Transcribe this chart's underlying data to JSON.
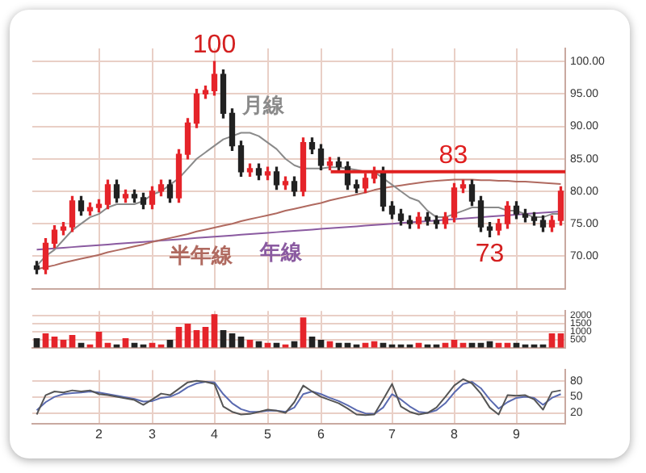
{
  "chart_data": [
    {
      "type": "candlestick",
      "categories": [
        null,
        null,
        null,
        null,
        null,
        null,
        null,
        "2",
        null,
        null,
        null,
        null,
        null,
        "3",
        null,
        null,
        null,
        null,
        null,
        null,
        "4",
        null,
        null,
        null,
        null,
        null,
        "5",
        null,
        null,
        null,
        null,
        null,
        "6",
        null,
        null,
        null,
        null,
        null,
        null,
        null,
        "7",
        null,
        null,
        null,
        null,
        null,
        null,
        "8",
        null,
        null,
        null,
        null,
        null,
        null,
        "9",
        null,
        null,
        null,
        null,
        null
      ],
      "ohlc": [
        [
          68.5,
          69.2,
          67.3,
          68
        ],
        [
          68,
          72.7,
          67.3,
          72
        ],
        [
          72,
          74.7,
          71.3,
          74
        ],
        [
          74,
          75.2,
          73.3,
          74.5
        ],
        [
          74.5,
          79.2,
          73.8,
          78.5
        ],
        [
          78.5,
          79.2,
          76.3,
          77
        ],
        [
          77,
          78.2,
          76.3,
          77.5
        ],
        [
          77.5,
          78.7,
          76.8,
          78
        ],
        [
          78,
          81.7,
          77.3,
          81
        ],
        [
          81,
          81.7,
          78.3,
          79
        ],
        [
          79,
          80.2,
          78.3,
          79.5
        ],
        [
          79.5,
          80.2,
          78.3,
          79
        ],
        [
          79,
          79.7,
          77.3,
          78
        ],
        [
          78,
          80.7,
          77.3,
          80
        ],
        [
          80,
          81.7,
          79.3,
          81
        ],
        [
          81,
          81.7,
          78.3,
          79
        ],
        [
          79,
          86.4,
          78.3,
          85.7
        ],
        [
          85.7,
          91.2,
          85,
          90.5
        ],
        [
          90.5,
          95.7,
          89.8,
          95
        ],
        [
          95,
          96.2,
          94.3,
          95.5
        ],
        [
          95.5,
          100,
          94.8,
          98
        ],
        [
          98,
          98.7,
          91.3,
          92
        ],
        [
          92,
          92.7,
          86.3,
          87
        ],
        [
          87,
          87.7,
          82.3,
          83
        ],
        [
          83,
          84.2,
          82.3,
          83.5
        ],
        [
          83.5,
          84.2,
          81.8,
          82.5
        ],
        [
          82.5,
          83.7,
          81.8,
          83
        ],
        [
          83,
          83.7,
          80.3,
          81
        ],
        [
          81,
          82.2,
          80.3,
          81.5
        ],
        [
          81.5,
          82.2,
          79.3,
          80
        ],
        [
          80,
          88.2,
          79.3,
          87.5
        ],
        [
          87.5,
          88.2,
          85.8,
          86.5
        ],
        [
          86.5,
          87.2,
          83.3,
          84
        ],
        [
          84,
          85.2,
          83.3,
          84.5
        ],
        [
          84.5,
          85.2,
          83.1,
          83.8
        ],
        [
          83.8,
          84.5,
          80.3,
          81
        ],
        [
          81,
          81.7,
          79.8,
          80.5
        ],
        [
          80.5,
          82.7,
          79.8,
          82
        ],
        [
          82,
          83.7,
          81.3,
          83
        ],
        [
          83,
          83.7,
          77,
          77.7
        ],
        [
          77.7,
          78.4,
          75.8,
          76.5
        ],
        [
          76.5,
          77.2,
          74.8,
          75.5
        ],
        [
          75.5,
          76.2,
          74.3,
          75
        ],
        [
          75,
          76.7,
          74.3,
          76
        ],
        [
          76,
          76.7,
          74.8,
          75.5
        ],
        [
          75.5,
          76.2,
          74.3,
          75
        ],
        [
          75,
          76.7,
          74.3,
          76
        ],
        [
          76,
          81.2,
          75.3,
          80.5
        ],
        [
          80.5,
          81.7,
          79.8,
          81
        ],
        [
          81,
          81.7,
          77.8,
          78.5
        ],
        [
          78.5,
          79.2,
          73.8,
          74.5
        ],
        [
          74.5,
          75.2,
          73,
          74
        ],
        [
          74,
          75.7,
          73.3,
          75
        ],
        [
          75,
          78.4,
          74.3,
          77.7
        ],
        [
          77.7,
          78.4,
          75.8,
          76.5
        ],
        [
          76.5,
          77.2,
          75.3,
          76
        ],
        [
          76,
          76.7,
          74.8,
          75.5
        ],
        [
          75.5,
          76.2,
          73.8,
          74.5
        ],
        [
          74.5,
          76.2,
          73.8,
          75.5
        ],
        [
          75.5,
          80.7,
          74.8,
          80
        ]
      ],
      "colors": [
        "#222222",
        "#e5242a",
        "#e5242a",
        "#e5242a",
        "#e5242a",
        "#222222",
        "#e5242a",
        "#e5242a",
        "#e5242a",
        "#222222",
        "#e5242a",
        "#222222",
        "#222222",
        "#e5242a",
        "#e5242a",
        "#222222",
        "#e5242a",
        "#e5242a",
        "#e5242a",
        "#e5242a",
        "#e5242a",
        "#222222",
        "#222222",
        "#222222",
        "#e5242a",
        "#222222",
        "#e5242a",
        "#222222",
        "#e5242a",
        "#222222",
        "#e5242a",
        "#222222",
        "#222222",
        "#e5242a",
        "#222222",
        "#222222",
        "#222222",
        "#e5242a",
        "#e5242a",
        "#222222",
        "#222222",
        "#222222",
        "#222222",
        "#e5242a",
        "#222222",
        "#222222",
        "#e5242a",
        "#e5242a",
        "#e5242a",
        "#222222",
        "#222222",
        "#222222",
        "#e5242a",
        "#e5242a",
        "#222222",
        "#222222",
        "#222222",
        "#222222",
        "#e5242a",
        "#e5242a"
      ],
      "series": [
        {
          "type": "line",
          "name": "月線",
          "color": "#8a8a8a",
          "values": [
            68.5,
            70,
            71,
            72.5,
            74,
            75,
            76,
            76.5,
            77.5,
            78,
            78,
            78,
            78.5,
            79.5,
            80,
            81,
            82,
            83.5,
            85,
            86,
            87,
            88,
            88.5,
            89,
            89,
            88.5,
            87.5,
            86.5,
            85,
            84,
            83.5,
            83.5,
            83.5,
            83.7,
            83.7,
            83.5,
            83.3,
            83,
            83,
            82,
            81,
            80,
            79,
            78.5,
            77,
            76,
            76,
            76.5,
            77,
            77.5,
            77.5,
            77.5,
            77.5,
            77,
            77,
            76.5,
            76,
            76,
            76.5,
            76.5
          ]
        },
        {
          "type": "line",
          "name": "半年線",
          "color": "#b06a60",
          "values": [
            68,
            68.3,
            68.6,
            69,
            69.3,
            69.6,
            69.9,
            70.2,
            70.6,
            70.9,
            71.2,
            71.5,
            71.8,
            72.2,
            72.5,
            72.8,
            73.1,
            73.4,
            73.8,
            74.1,
            74.4,
            74.7,
            75,
            75.4,
            75.7,
            76,
            76.3,
            76.6,
            77,
            77.3,
            77.6,
            77.9,
            78.2,
            78.6,
            78.9,
            79.2,
            79.5,
            79.8,
            80.2,
            80.5,
            80.7,
            80.9,
            81.1,
            81.3,
            81.5,
            81.6,
            81.7,
            81.8,
            81.8,
            81.8,
            81.7,
            81.7,
            81.6,
            81.6,
            81.5,
            81.5,
            81.4,
            81.3,
            81.2,
            81.1
          ]
        },
        {
          "type": "line",
          "name": "年線",
          "color": "#8a5aa0",
          "values": [
            71,
            71.1,
            71.2,
            71.3,
            71.4,
            71.5,
            71.6,
            71.7,
            71.8,
            71.9,
            72,
            72.1,
            72.2,
            72.3,
            72.4,
            72.5,
            72.6,
            72.7,
            72.8,
            72.9,
            73,
            73.1,
            73.2,
            73.3,
            73.4,
            73.5,
            73.6,
            73.7,
            73.8,
            73.9,
            74,
            74.1,
            74.2,
            74.3,
            74.4,
            74.5,
            74.6,
            74.7,
            74.8,
            74.9,
            75,
            75.1,
            75.2,
            75.3,
            75.4,
            75.5,
            75.6,
            75.7,
            75.8,
            75.9,
            76,
            76.1,
            76.2,
            76.3,
            76.4,
            76.5,
            76.6,
            76.7,
            76.8,
            76.9
          ]
        }
      ],
      "ylim": [
        65,
        102
      ],
      "yticks": [
        {
          "value": 70,
          "label": "70.00"
        },
        {
          "value": 75,
          "label": "75.00"
        },
        {
          "value": 80,
          "label": "80.00"
        },
        {
          "value": 85,
          "label": "85.00"
        },
        {
          "value": 90,
          "label": "90.00"
        },
        {
          "value": 95,
          "label": "95.00"
        },
        {
          "value": 100,
          "label": "100.00"
        }
      ],
      "ref_lines": [
        {
          "axis": "y",
          "value": 83,
          "label": "83",
          "color": "#e02020"
        }
      ],
      "annotations": [
        {
          "text": "100",
          "y": 100
        },
        {
          "text": "73",
          "y": 73
        }
      ],
      "grid": true,
      "tick_labels": "y"
    },
    {
      "type": "bar",
      "categories": [
        null,
        null,
        null,
        null,
        null,
        null,
        null,
        "2",
        null,
        null,
        null,
        null,
        null,
        "3",
        null,
        null,
        null,
        null,
        null,
        null,
        "4",
        null,
        null,
        null,
        null,
        null,
        "5",
        null,
        null,
        null,
        null,
        null,
        "6",
        null,
        null,
        null,
        null,
        null,
        null,
        null,
        "7",
        null,
        null,
        null,
        null,
        null,
        null,
        "8",
        null,
        null,
        null,
        null,
        null,
        null,
        "9",
        null,
        null,
        null,
        null,
        null
      ],
      "values": [
        600,
        900,
        700,
        500,
        800,
        300,
        200,
        1000,
        300,
        200,
        600,
        300,
        200,
        300,
        200,
        500,
        1300,
        1500,
        1100,
        1300,
        2100,
        1100,
        900,
        700,
        500,
        400,
        300,
        300,
        200,
        400,
        1900,
        700,
        500,
        400,
        300,
        300,
        200,
        300,
        400,
        300,
        200,
        200,
        200,
        300,
        200,
        200,
        300,
        500,
        300,
        300,
        300,
        400,
        300,
        300,
        300,
        200,
        200,
        200,
        900,
        900
      ],
      "colors": [
        "#222222",
        "#e5242a",
        "#e5242a",
        "#e5242a",
        "#e5242a",
        "#222222",
        "#e5242a",
        "#e5242a",
        "#e5242a",
        "#222222",
        "#e5242a",
        "#222222",
        "#222222",
        "#e5242a",
        "#e5242a",
        "#222222",
        "#e5242a",
        "#e5242a",
        "#e5242a",
        "#e5242a",
        "#e5242a",
        "#222222",
        "#222222",
        "#222222",
        "#e5242a",
        "#222222",
        "#e5242a",
        "#222222",
        "#e5242a",
        "#222222",
        "#e5242a",
        "#222222",
        "#222222",
        "#e5242a",
        "#222222",
        "#222222",
        "#222222",
        "#e5242a",
        "#e5242a",
        "#222222",
        "#222222",
        "#222222",
        "#222222",
        "#e5242a",
        "#222222",
        "#222222",
        "#e5242a",
        "#e5242a",
        "#e5242a",
        "#222222",
        "#222222",
        "#222222",
        "#e5242a",
        "#e5242a",
        "#222222",
        "#222222",
        "#222222",
        "#222222",
        "#e5242a",
        "#e5242a"
      ],
      "ylim": [
        0,
        2300
      ],
      "yticks": [
        500,
        1000,
        1500,
        2000
      ],
      "grid": true,
      "tick_labels": "y"
    },
    {
      "type": "line",
      "categories": [
        null,
        null,
        null,
        null,
        null,
        null,
        null,
        "2",
        null,
        null,
        null,
        null,
        null,
        "3",
        null,
        null,
        null,
        null,
        null,
        null,
        "4",
        null,
        null,
        null,
        null,
        null,
        "5",
        null,
        null,
        null,
        null,
        null,
        "6",
        null,
        null,
        null,
        null,
        null,
        null,
        null,
        "7",
        null,
        null,
        null,
        null,
        null,
        null,
        "8",
        null,
        null,
        null,
        null,
        null,
        null,
        "9",
        null,
        null,
        null,
        null,
        null
      ],
      "series": [
        {
          "color": "#555555",
          "values": [
            17,
            53,
            60,
            58,
            62,
            60,
            62,
            55,
            53,
            50,
            47,
            44,
            35,
            45,
            56,
            53,
            65,
            77,
            80,
            78,
            74,
            32,
            22,
            17,
            18,
            22,
            26,
            24,
            20,
            40,
            71,
            60,
            50,
            44,
            38,
            28,
            17,
            16,
            17,
            45,
            74,
            32,
            22,
            17,
            20,
            30,
            50,
            71,
            83,
            75,
            56,
            30,
            17,
            53,
            52,
            53,
            45,
            26,
            59,
            62
          ]
        },
        {
          "color": "#5a6ab0",
          "values": [
            25,
            40,
            50,
            55,
            57,
            58,
            60,
            58,
            55,
            52,
            49,
            46,
            41,
            42,
            48,
            50,
            57,
            68,
            75,
            78,
            77,
            55,
            38,
            27,
            22,
            22,
            24,
            24,
            22,
            30,
            55,
            60,
            55,
            48,
            42,
            34,
            25,
            19,
            18,
            30,
            55,
            45,
            32,
            22,
            20,
            25,
            38,
            58,
            74,
            78,
            66,
            45,
            28,
            40,
            48,
            50,
            48,
            35,
            48,
            55
          ]
        }
      ],
      "ylim": [
        0,
        100
      ],
      "yticks": [
        20,
        50,
        80
      ],
      "grid": true
    }
  ]
}
